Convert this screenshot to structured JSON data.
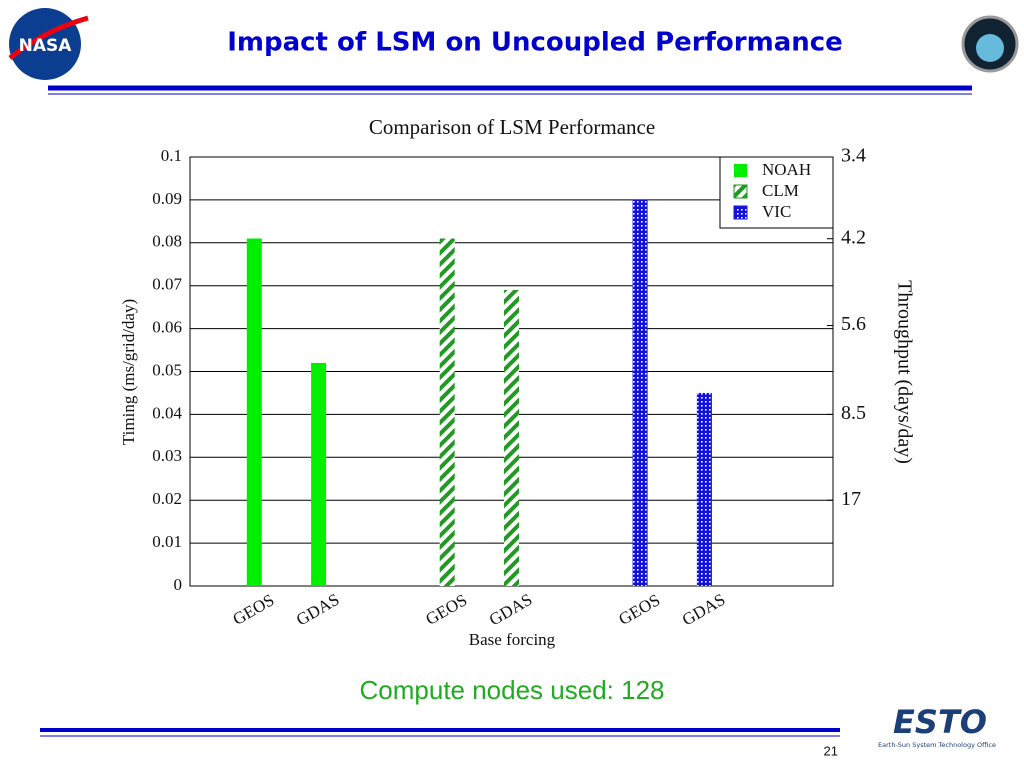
{
  "slide": {
    "title": "Impact of LSM on Uncoupled Performance",
    "note": "Compute nodes used: 128",
    "page": "21",
    "left_logo": "NASA",
    "right_logo": "ESTO",
    "right_logo_subtitle": "Earth-Sun System Technology Office"
  },
  "chart_data": {
    "type": "bar",
    "title": "Comparison of LSM Performance",
    "categories": [
      "GEOS",
      "GDAS",
      "GEOS",
      "GDAS",
      "GEOS",
      "GDAS"
    ],
    "series": [
      {
        "name": "NOAH",
        "color": "#00ee00",
        "fill": "solid",
        "values": [
          0.081,
          0.052,
          null,
          null,
          null,
          null
        ]
      },
      {
        "name": "CLM",
        "color": "#229922",
        "fill": "diagonal",
        "values": [
          null,
          null,
          0.081,
          0.069,
          null,
          null
        ]
      },
      {
        "name": "VIC",
        "color": "#1111dd",
        "fill": "dotted",
        "values": [
          null,
          null,
          null,
          null,
          0.09,
          0.045
        ]
      }
    ],
    "xlabel": "Base forcing",
    "ylabel": "Timing (ms/grid/day)",
    "y2label": "Throughput (days/day)",
    "ylim": [
      0,
      0.1
    ],
    "yticks": [
      0,
      0.01,
      0.02,
      0.03,
      0.04,
      0.05,
      0.06,
      0.07,
      0.08,
      0.09,
      0.1
    ],
    "y2scale": "reciprocal",
    "y2lim": [
      null,
      3.4
    ],
    "y2ticks": [
      3.4,
      4.2,
      5.6,
      8.5,
      17
    ],
    "grid": true,
    "legend": "upper right"
  }
}
